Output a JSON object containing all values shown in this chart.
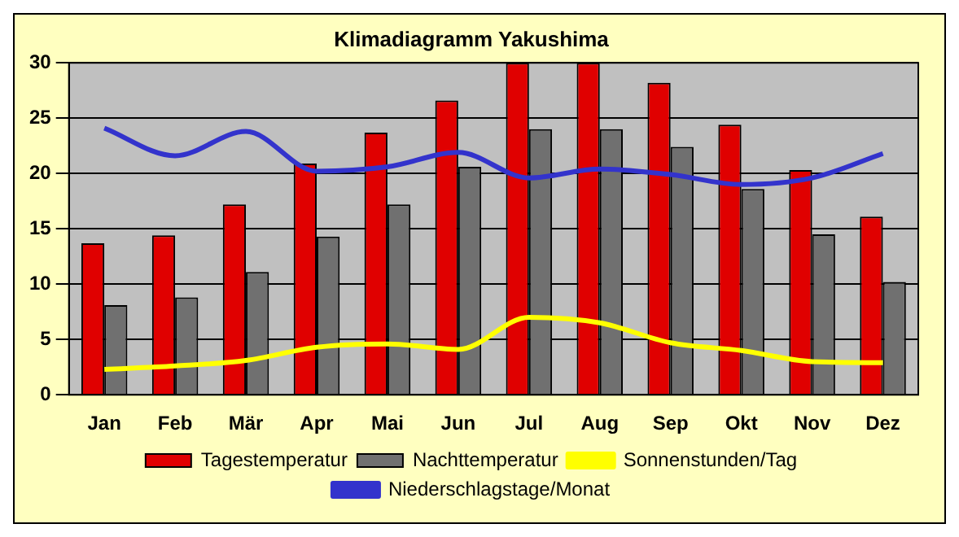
{
  "chart_data": {
    "type": "bar",
    "title": "Klimadiagramm Yakushima",
    "categories": [
      "Jan",
      "Feb",
      "Mär",
      "Apr",
      "Mai",
      "Jun",
      "Jul",
      "Aug",
      "Sep",
      "Okt",
      "Nov",
      "Dez"
    ],
    "series": [
      {
        "name": "Tagestemperatur",
        "color": "#e00000",
        "values": [
          13.7,
          14.4,
          17.2,
          20.9,
          23.7,
          26.6,
          30,
          30,
          28.2,
          24.4,
          20.3,
          16.1
        ]
      },
      {
        "name": "Nachttemperatur",
        "color": "#707070",
        "values": [
          8.1,
          8.8,
          11.1,
          14.3,
          17.2,
          20.6,
          24,
          24,
          22.4,
          18.6,
          14.5,
          10.2
        ]
      },
      {
        "name": "Sonnenstunden/Tag",
        "type": "line",
        "color": "#ffff00",
        "values": [
          2.3,
          2.6,
          3.1,
          4.3,
          4.6,
          4.1,
          7.0,
          6.5,
          4.7,
          4.0,
          3.0,
          2.9
        ]
      },
      {
        "name": "Niederschlagstage/Monat",
        "type": "line",
        "color": "#3333cc",
        "values": [
          24.1,
          21.6,
          23.8,
          20.2,
          20.6,
          21.9,
          19.6,
          20.4,
          19.9,
          19.0,
          19.6,
          21.8
        ]
      }
    ],
    "ylim": [
      0,
      30
    ],
    "yticks": [
      0,
      5,
      10,
      15,
      20,
      25,
      30
    ],
    "grid": "y",
    "legend": "bottom",
    "marker": "none"
  }
}
